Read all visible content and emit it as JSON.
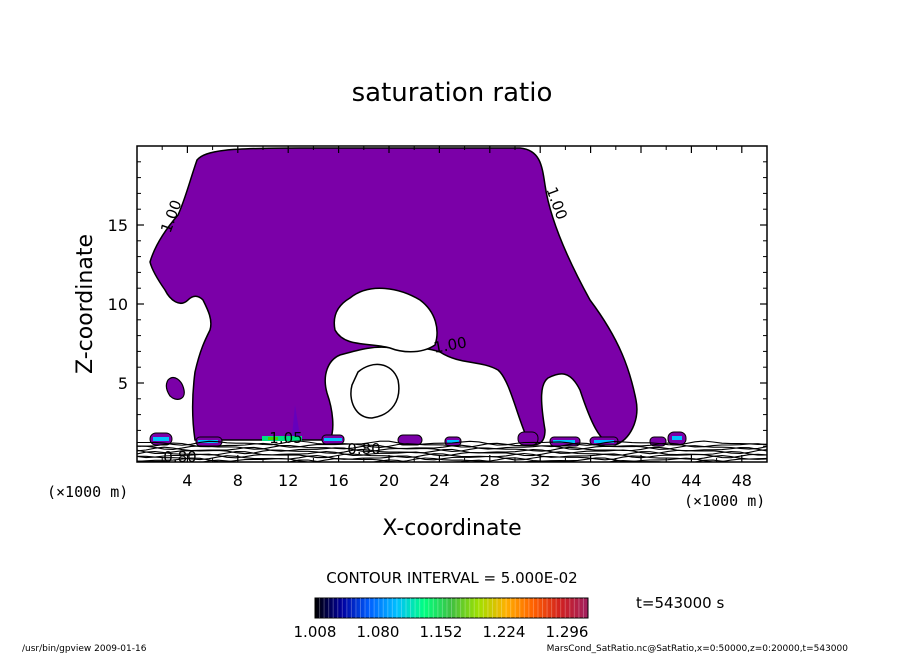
{
  "chart_data": {
    "type": "contour",
    "title": "saturation ratio",
    "xlabel": "X-coordinate",
    "ylabel": "Z-coordinate",
    "x_unit": "(×1000 m)",
    "y_unit": "(×1000 m)",
    "xlim": [
      0,
      50
    ],
    "ylim": [
      0,
      20
    ],
    "xticks": [
      4,
      8,
      12,
      16,
      20,
      24,
      28,
      32,
      36,
      40,
      44,
      48
    ],
    "yticks": [
      5,
      10,
      15
    ],
    "contour_interval_text": "CONTOUR INTERVAL = 5.000E-02",
    "contour_labels": [
      "1.00",
      "1.00",
      "1.00",
      "0.80",
      "0.80",
      "1.05"
    ],
    "colorbar": {
      "ticks": [
        "1.008",
        "1.080",
        "1.152",
        "1.224",
        "1.296"
      ],
      "min": 1.008,
      "max": 1.32,
      "colors": [
        "#000000",
        "#0000a0",
        "#0060ff",
        "#00c0ff",
        "#00ff80",
        "#40c040",
        "#a0e000",
        "#ffb000",
        "#ff6000",
        "#d02020",
        "#a02060"
      ]
    },
    "time_text": "t=543000 s",
    "fill_color": "#7b00a8",
    "background_color": "#ffffff"
  },
  "footer": {
    "left": "/usr/bin/gpview   2009-01-16",
    "right": "MarsCond_SatRatio.nc@SatRatio,x=0:50000,z=0:20000,t=543000"
  }
}
